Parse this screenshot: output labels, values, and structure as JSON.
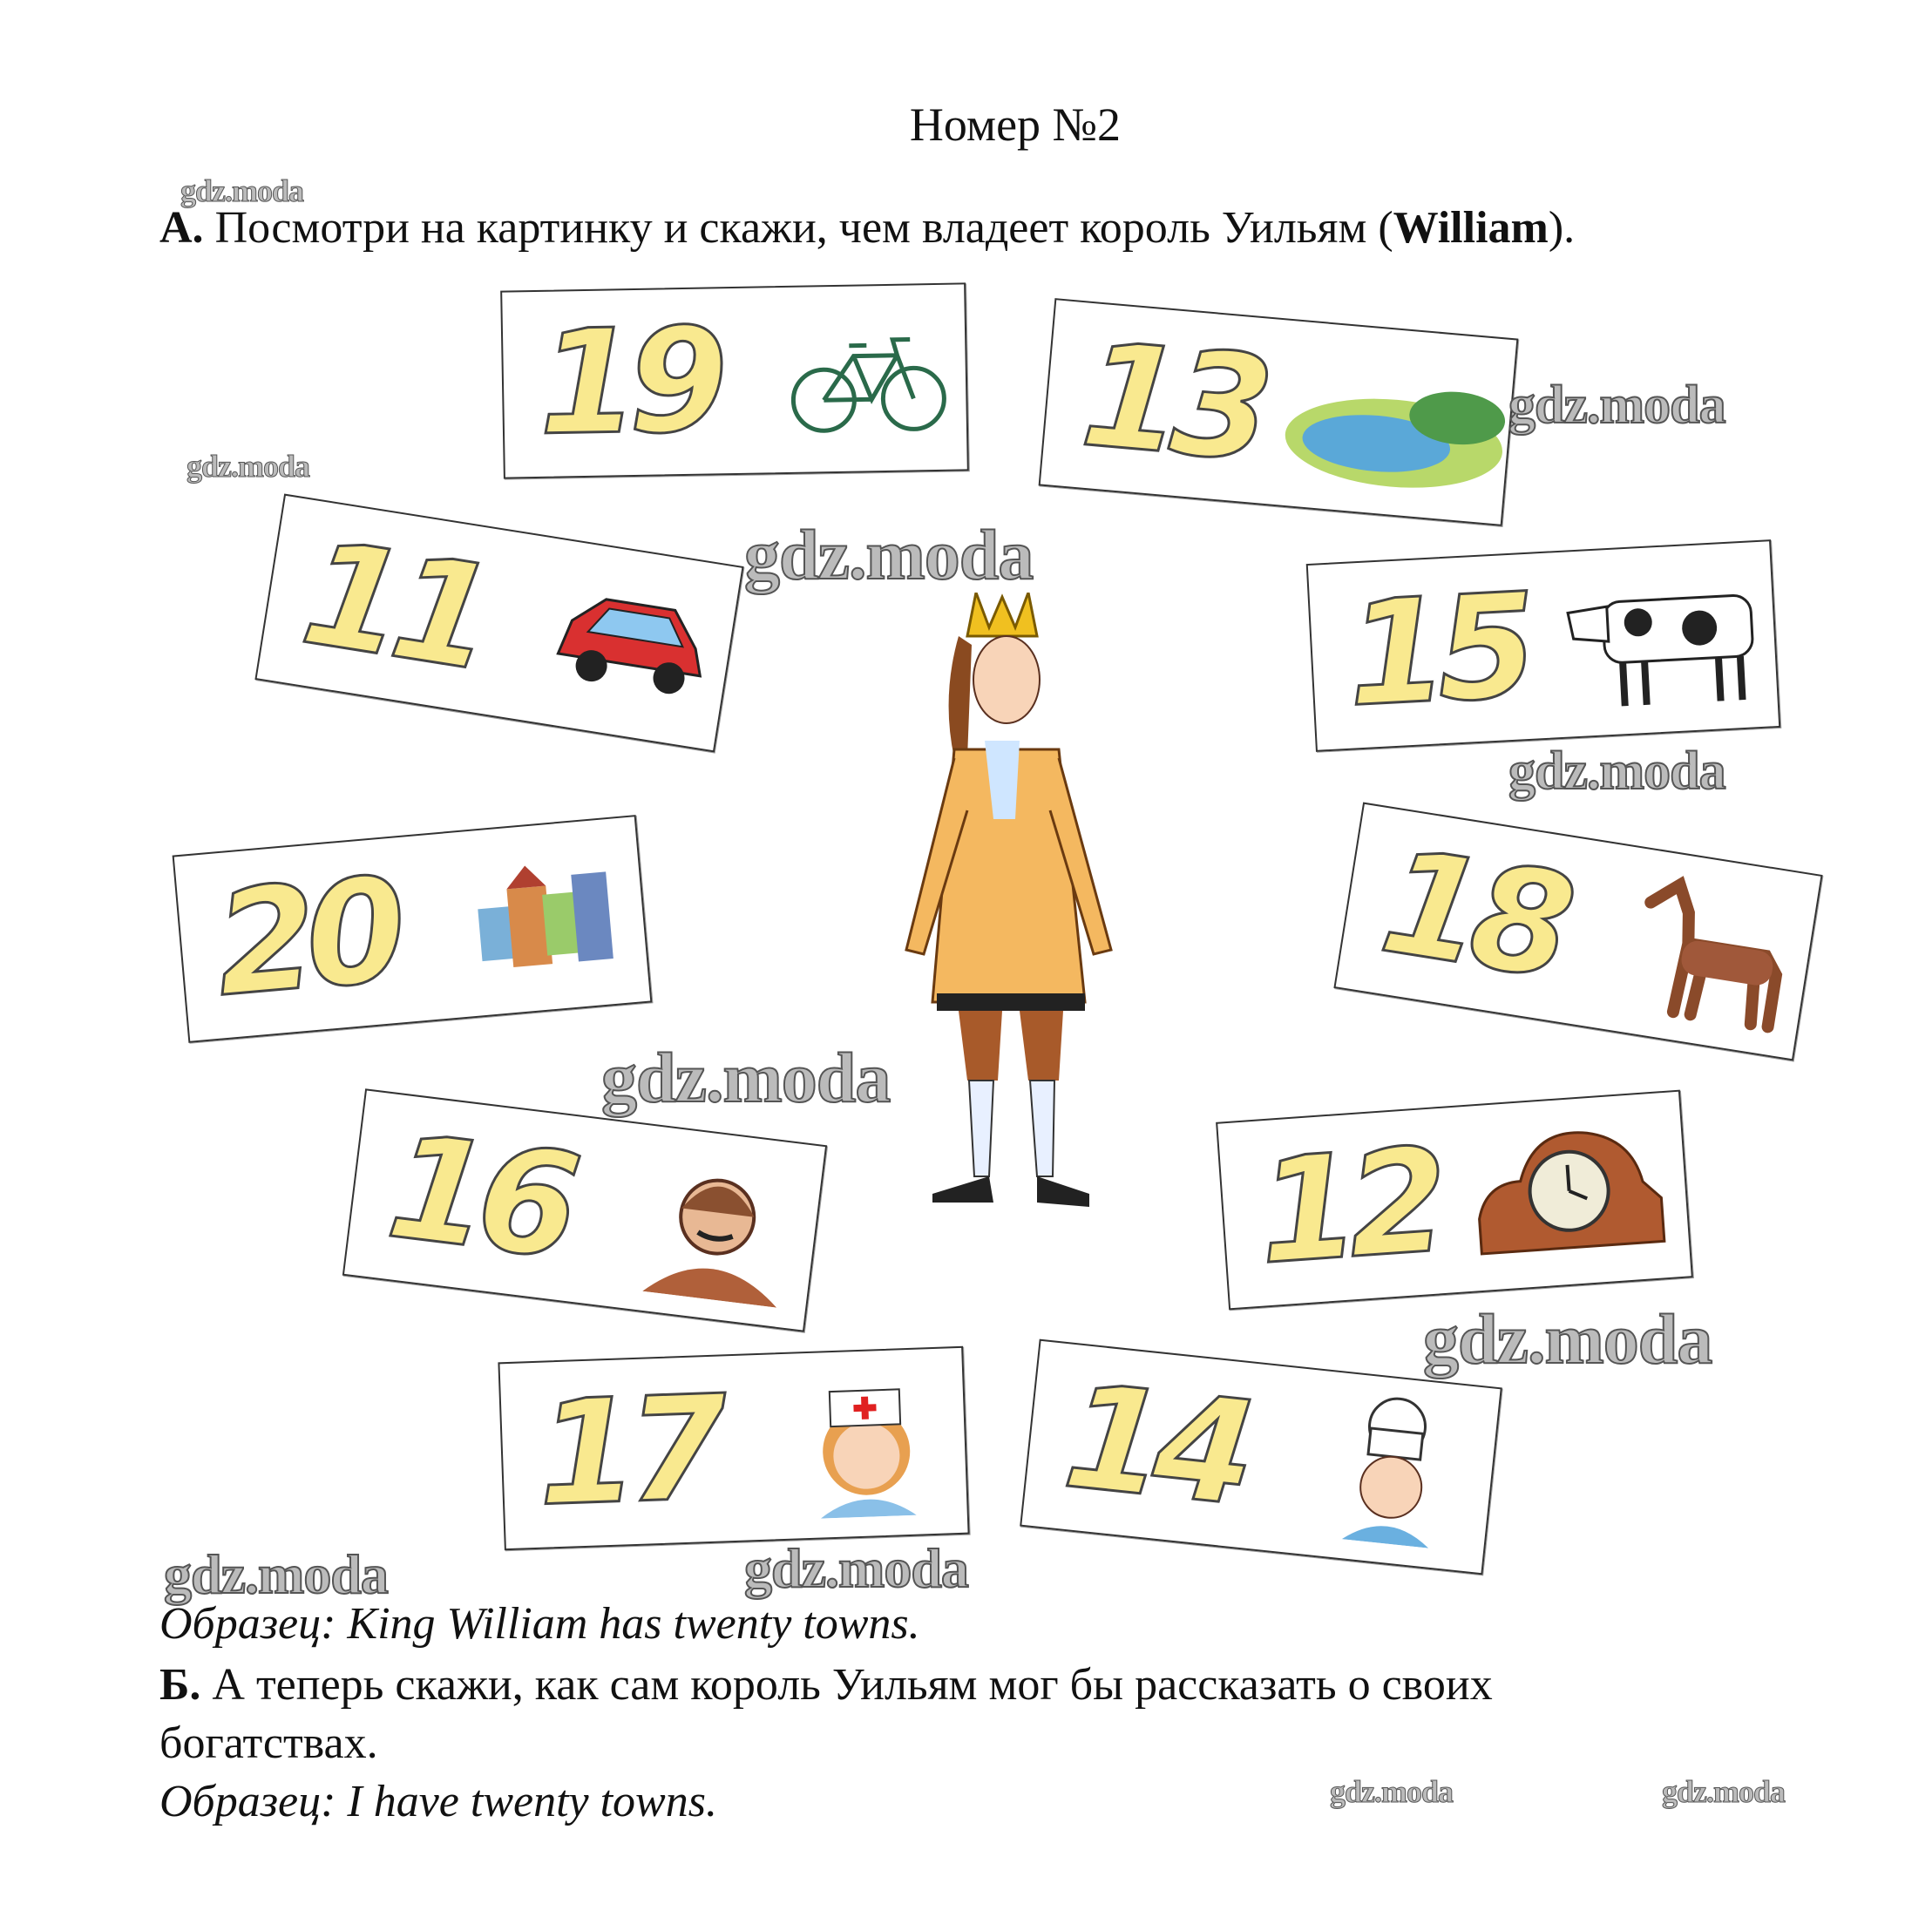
{
  "header": {
    "title": "Номер №2"
  },
  "task_a": {
    "label": "А.",
    "text": " Посмотри на картинку и скажи, чем владеет король Уильям (",
    "name": "William",
    "end": ")."
  },
  "example_a": "Образец: King William has twenty towns.",
  "task_b": {
    "label": "Б.",
    "text": " А теперь скажи, как сам король Уильям мог бы рассказать о своих",
    "text2": "богатствах."
  },
  "example_b": "Образец: I have twenty towns.",
  "cards": [
    {
      "number": "19",
      "icon": "bicycle"
    },
    {
      "number": "13",
      "icon": "pond"
    },
    {
      "number": "11",
      "icon": "car"
    },
    {
      "number": "15",
      "icon": "cow"
    },
    {
      "number": "20",
      "icon": "town"
    },
    {
      "number": "18",
      "icon": "horse"
    },
    {
      "number": "16",
      "icon": "pilot"
    },
    {
      "number": "12",
      "icon": "clock"
    },
    {
      "number": "17",
      "icon": "nurse"
    },
    {
      "number": "14",
      "icon": "chef"
    }
  ],
  "center_figure": "king",
  "watermarks": [
    "gdz.moda",
    "gdz.moda",
    "gdz.moda",
    "gdz.moda",
    "gdz.moda",
    "gdz.moda",
    "gdz.moda",
    "gdz.moda",
    "gdz.moda",
    "gdz.moda",
    "gdz.moda"
  ],
  "colors": {
    "number_fill": "#f9e98f",
    "number_outline": "#444444",
    "watermark": "#bbbbbb"
  }
}
